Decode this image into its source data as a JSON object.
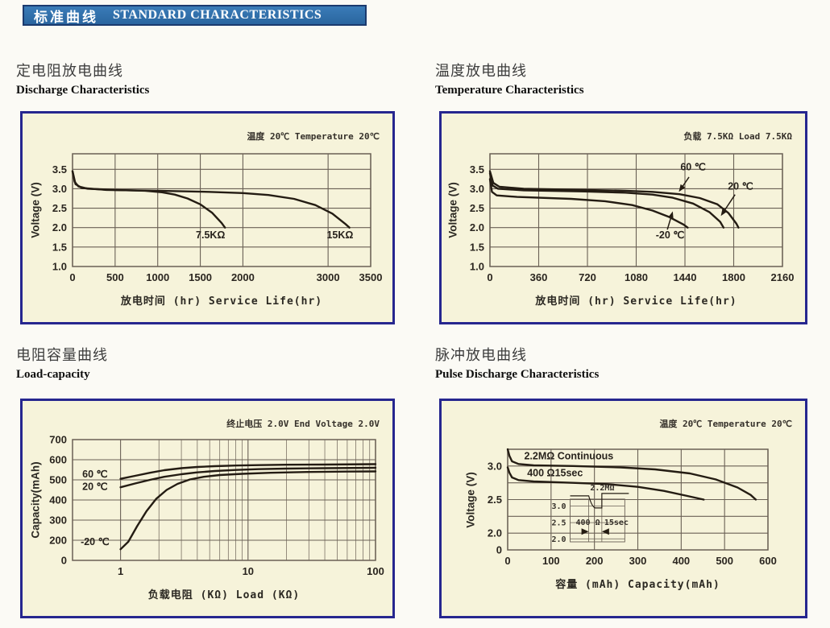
{
  "header": {
    "banner_cn": "标准曲线",
    "banner_en": "STANDARD CHARACTERISTICS"
  },
  "colors": {
    "banner_blue": "#2e72b0",
    "panel_border_navy": "#26268f",
    "panel_bg_cream": "#f6f3da",
    "grid": "#6a6055",
    "curve": "#241c13",
    "text_dark": "#2a251f"
  },
  "chart_data": [
    {
      "id": "discharge-characteristics",
      "type": "line",
      "title_cn": "定电阻放电曲线",
      "title_en": "Discharge Characteristics",
      "note": "温度 20℃  Temperature 20℃",
      "xlabel": "放电时间 (hr) Service Life(hr)",
      "ylabel": "Voltage (V)",
      "x_scale": {
        "type": "linear",
        "min": 0,
        "max": 3500
      },
      "y_scale": {
        "type": "anchors",
        "anchors": [
          [
            3.9,
            0
          ],
          [
            1.0,
            1
          ]
        ]
      },
      "x_grid": [
        {
          "v": 0,
          "t": "0"
        },
        {
          "v": 500,
          "t": "500"
        },
        {
          "v": 1000,
          "t": "1000"
        },
        {
          "v": 1500,
          "t": "1500"
        },
        {
          "v": 2000,
          "t": "2000"
        },
        {
          "v": 3000,
          "t": "3000"
        },
        {
          "v": 3500,
          "t": "3500"
        }
      ],
      "y_grid": [
        {
          "v": 3.5,
          "t": "3.5"
        },
        {
          "v": 3.0,
          "t": "3.0"
        },
        {
          "v": 2.5,
          "t": "2.5"
        },
        {
          "v": 2.0,
          "t": "2.0"
        },
        {
          "v": 1.5,
          "t": "1.5"
        },
        {
          "v": 1.0,
          "t": "1.0"
        }
      ],
      "series": [
        {
          "name": "7.5KΩ",
          "points": [
            [
              0,
              3.45
            ],
            [
              25,
              3.18
            ],
            [
              70,
              3.06
            ],
            [
              180,
              3.0
            ],
            [
              500,
              2.97
            ],
            [
              850,
              2.95
            ],
            [
              1050,
              2.91
            ],
            [
              1200,
              2.85
            ],
            [
              1350,
              2.75
            ],
            [
              1500,
              2.6
            ],
            [
              1640,
              2.38
            ],
            [
              1750,
              2.12
            ],
            [
              1790,
              2.0
            ]
          ]
        },
        {
          "name": "15KΩ",
          "points": [
            [
              0,
              3.45
            ],
            [
              35,
              3.12
            ],
            [
              110,
              3.02
            ],
            [
              400,
              2.97
            ],
            [
              1000,
              2.95
            ],
            [
              1600,
              2.92
            ],
            [
              2000,
              2.89
            ],
            [
              2300,
              2.84
            ],
            [
              2600,
              2.74
            ],
            [
              2850,
              2.58
            ],
            [
              3050,
              2.36
            ],
            [
              3200,
              2.1
            ],
            [
              3250,
              2.0
            ]
          ]
        }
      ],
      "labels": [
        {
          "t": "7.5KΩ",
          "x": 1620,
          "y": 1.72
        },
        {
          "t": "15KΩ",
          "x": 3140,
          "y": 1.72
        }
      ]
    },
    {
      "id": "temperature-characteristics",
      "type": "line",
      "title_cn": "温度放电曲线",
      "title_en": "Temperature Characteristics",
      "note": "负载 7.5KΩ  Load 7.5KΩ",
      "xlabel": "放电时间 (hr) Service Life(hr)",
      "ylabel": "Voltage (V)",
      "x_scale": {
        "type": "linear",
        "min": 0,
        "max": 2160
      },
      "y_scale": {
        "type": "anchors",
        "anchors": [
          [
            3.9,
            0
          ],
          [
            1.0,
            1
          ]
        ]
      },
      "x_grid": [
        {
          "v": 0,
          "t": "0"
        },
        {
          "v": 360,
          "t": "360"
        },
        {
          "v": 720,
          "t": "720"
        },
        {
          "v": 1080,
          "t": "1080"
        },
        {
          "v": 1440,
          "t": "1440"
        },
        {
          "v": 1800,
          "t": "1800"
        },
        {
          "v": 2160,
          "t": "2160"
        }
      ],
      "y_grid": [
        {
          "v": 3.5,
          "t": "3.5"
        },
        {
          "v": 3.0,
          "t": "3.0"
        },
        {
          "v": 2.5,
          "t": "2.5"
        },
        {
          "v": 2.0,
          "t": "2.0"
        },
        {
          "v": 1.5,
          "t": "1.5"
        },
        {
          "v": 1.0,
          "t": "1.0"
        }
      ],
      "series": [
        {
          "name": "20℃",
          "points": [
            [
              0,
              3.45
            ],
            [
              25,
              3.15
            ],
            [
              70,
              3.05
            ],
            [
              250,
              3.0
            ],
            [
              700,
              2.97
            ],
            [
              1000,
              2.95
            ],
            [
              1200,
              2.92
            ],
            [
              1400,
              2.86
            ],
            [
              1550,
              2.76
            ],
            [
              1680,
              2.6
            ],
            [
              1760,
              2.38
            ],
            [
              1820,
              2.1
            ],
            [
              1835,
              2.0
            ]
          ]
        },
        {
          "name": "60℃",
          "points": [
            [
              0,
              3.4
            ],
            [
              20,
              3.08
            ],
            [
              60,
              3.0
            ],
            [
              250,
              2.96
            ],
            [
              700,
              2.93
            ],
            [
              1000,
              2.9
            ],
            [
              1200,
              2.85
            ],
            [
              1350,
              2.77
            ],
            [
              1500,
              2.62
            ],
            [
              1620,
              2.4
            ],
            [
              1700,
              2.15
            ],
            [
              1725,
              2.0
            ]
          ]
        },
        {
          "name": "-20℃",
          "points": [
            [
              0,
              3.25
            ],
            [
              15,
              2.92
            ],
            [
              50,
              2.83
            ],
            [
              200,
              2.79
            ],
            [
              600,
              2.74
            ],
            [
              850,
              2.68
            ],
            [
              1050,
              2.58
            ],
            [
              1200,
              2.44
            ],
            [
              1320,
              2.28
            ],
            [
              1430,
              2.08
            ],
            [
              1460,
              2.0
            ]
          ]
        }
      ],
      "labels": [
        {
          "t": "60 ℃",
          "x": 1500,
          "y": 3.48,
          "arrow": [
            1470,
            3.3,
            1395,
            2.92
          ]
        },
        {
          "t": "20 ℃",
          "x": 1850,
          "y": 2.98,
          "arrow": [
            1810,
            2.85,
            1705,
            2.3
          ]
        },
        {
          "t": "-20 ℃",
          "x": 1330,
          "y": 1.72,
          "arrow": [
            1310,
            1.95,
            1350,
            2.42
          ]
        }
      ]
    },
    {
      "id": "load-capacity",
      "type": "line",
      "title_cn": "电阻容量曲线",
      "title_en": "Load-capacity",
      "note": "终止电压 2.0V End Voltage 2.0V",
      "xlabel": "负载电阻 (KΩ) Load (KΩ)",
      "ylabel": "Capacity(mAh)",
      "x_scale": {
        "type": "log",
        "min": 0.42,
        "max": 100
      },
      "y_scale": {
        "type": "anchors",
        "anchors": [
          [
            700,
            0
          ],
          [
            200,
            0.8333
          ],
          [
            0,
            1
          ]
        ]
      },
      "x_grid": [
        {
          "v": 1,
          "t": "1"
        },
        {
          "v": 10,
          "t": "10"
        },
        {
          "v": 100,
          "t": "100"
        }
      ],
      "x_minor": [
        2,
        3,
        4,
        5,
        6,
        7,
        8,
        9,
        20,
        30,
        40,
        50,
        60,
        70,
        80,
        90
      ],
      "y_grid": [
        {
          "v": 700,
          "t": "700"
        },
        {
          "v": 600,
          "t": "600"
        },
        {
          "v": 500,
          "t": "500"
        },
        {
          "v": 400,
          "t": "400"
        },
        {
          "v": 300,
          "t": "300"
        },
        {
          "v": 200,
          "t": "200"
        },
        {
          "v": 0,
          "t": "0"
        }
      ],
      "series": [
        {
          "name": "60℃",
          "points": [
            [
              1,
              505
            ],
            [
              1.3,
              520
            ],
            [
              1.7,
              535
            ],
            [
              2.2,
              548
            ],
            [
              3,
              558
            ],
            [
              4,
              564
            ],
            [
              5.5,
              568
            ],
            [
              8,
              571
            ],
            [
              12,
              573
            ],
            [
              20,
              575
            ],
            [
              40,
              576
            ],
            [
              100,
              578
            ]
          ]
        },
        {
          "name": "20℃",
          "points": [
            [
              1,
              463
            ],
            [
              1.3,
              482
            ],
            [
              1.7,
              500
            ],
            [
              2.2,
              515
            ],
            [
              3,
              528
            ],
            [
              4,
              537
            ],
            [
              5.5,
              544
            ],
            [
              8,
              549
            ],
            [
              12,
              553
            ],
            [
              20,
              556
            ],
            [
              40,
              558
            ],
            [
              100,
              560
            ]
          ]
        },
        {
          "name": "-20℃",
          "points": [
            [
              1,
              110
            ],
            [
              1.15,
              185
            ],
            [
              1.35,
              270
            ],
            [
              1.6,
              345
            ],
            [
              1.9,
              405
            ],
            [
              2.3,
              450
            ],
            [
              2.8,
              480
            ],
            [
              3.5,
              502
            ],
            [
              4.5,
              515
            ],
            [
              6,
              524
            ],
            [
              9,
              530
            ],
            [
              15,
              535
            ],
            [
              30,
              539
            ],
            [
              60,
              541
            ],
            [
              100,
              542
            ]
          ]
        }
      ],
      "labels": [
        {
          "t": "60 ℃",
          "x": 0.63,
          "y": 512
        },
        {
          "t": "20 ℃",
          "x": 0.63,
          "y": 450
        },
        {
          "t": "-20 ℃",
          "x": 0.63,
          "y": 150
        }
      ]
    },
    {
      "id": "pulse-discharge-characteristics",
      "type": "line",
      "title_cn": "脉冲放电曲线",
      "title_en": "Pulse Discharge Characteristics",
      "note": "温度 20℃ Temperature 20℃",
      "xlabel": "容量 (mAh) Capacity(mAh)",
      "ylabel": "Voltage (V)",
      "x_scale": {
        "type": "linear",
        "min": 0,
        "max": 600
      },
      "y_scale": {
        "type": "anchors",
        "anchors": [
          [
            3.25,
            0
          ],
          [
            2.0,
            0.8333
          ],
          [
            0,
            1
          ]
        ]
      },
      "x_grid": [
        {
          "v": 0,
          "t": "0"
        },
        {
          "v": 100,
          "t": "100"
        },
        {
          "v": 200,
          "t": "200"
        },
        {
          "v": 300,
          "t": "300"
        },
        {
          "v": 400,
          "t": "400"
        },
        {
          "v": 500,
          "t": "500"
        },
        {
          "v": 600,
          "t": "600"
        }
      ],
      "y_grid": [
        {
          "v": 3.0,
          "t": "3.0"
        },
        {
          "v": 2.75,
          "t": ""
        },
        {
          "v": 2.5,
          "t": "2.5"
        },
        {
          "v": 2.25,
          "t": ""
        },
        {
          "v": 2.0,
          "t": "2.0"
        },
        {
          "v": 0,
          "t": "0"
        }
      ],
      "series": [
        {
          "name": "2.2MΩ Continuous",
          "points": [
            [
              0,
              3.25
            ],
            [
              4,
              3.15
            ],
            [
              10,
              3.07
            ],
            [
              25,
              3.03
            ],
            [
              60,
              3.01
            ],
            [
              150,
              3.0
            ],
            [
              260,
              2.98
            ],
            [
              340,
              2.95
            ],
            [
              420,
              2.89
            ],
            [
              480,
              2.8
            ],
            [
              530,
              2.68
            ],
            [
              560,
              2.57
            ],
            [
              572,
              2.5
            ]
          ]
        },
        {
          "name": "400 Ω15sec",
          "points": [
            [
              0,
              2.98
            ],
            [
              4,
              2.9
            ],
            [
              10,
              2.83
            ],
            [
              25,
              2.79
            ],
            [
              60,
              2.77
            ],
            [
              150,
              2.75
            ],
            [
              230,
              2.73
            ],
            [
              300,
              2.69
            ],
            [
              360,
              2.63
            ],
            [
              410,
              2.56
            ],
            [
              452,
              2.5
            ]
          ]
        }
      ],
      "labels": [
        {
          "t": "2.2MΩ Continuous",
          "x": 38,
          "y": 3.1,
          "anchor": "start"
        },
        {
          "t": "400 Ω15sec",
          "x": 45,
          "y": 2.85,
          "anchor": "start"
        }
      ],
      "inset": {
        "fx0": 0.24,
        "fx1": 0.45,
        "fy0": 0.495,
        "fy1": 0.92,
        "title": "2.2MΩ",
        "rows": [
          "3.0",
          "2.5",
          "2.0"
        ],
        "left": "400 Ω",
        "right": "15sec"
      }
    }
  ]
}
